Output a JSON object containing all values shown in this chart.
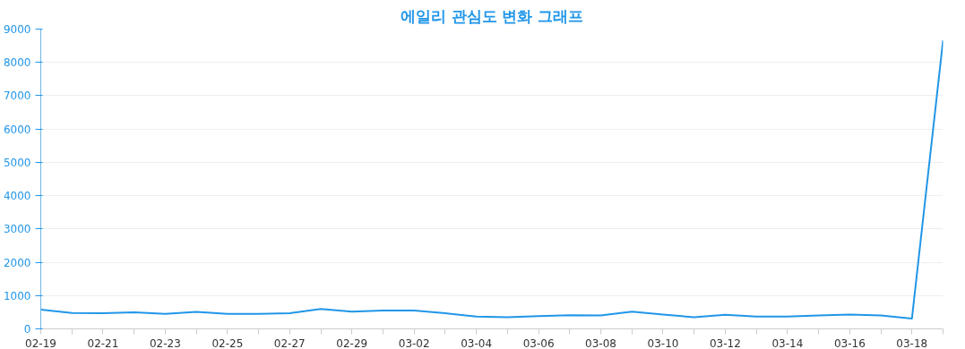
{
  "chart_data": {
    "type": "line",
    "title": "에일리 관심도 변화 그래프",
    "categories": [
      "02-19",
      null,
      "02-21",
      null,
      "02-23",
      null,
      "02-25",
      null,
      "02-27",
      null,
      "02-29",
      null,
      "03-02",
      null,
      "03-04",
      null,
      "03-06",
      null,
      "03-08",
      null,
      "03-10",
      null,
      "03-12",
      null,
      "03-14",
      null,
      "03-16",
      null,
      "03-18",
      null
    ],
    "series": [
      {
        "color": "#2196e8",
        "values": [
          580,
          480,
          470,
          500,
          450,
          510,
          450,
          450,
          470,
          600,
          520,
          550,
          550,
          470,
          370,
          350,
          380,
          410,
          400,
          520,
          430,
          350,
          420,
          370,
          370,
          400,
          430,
          400,
          310,
          8660
        ]
      }
    ],
    "ylim": [
      0,
      9000
    ],
    "yticks": [
      0,
      1000,
      2000,
      3000,
      4000,
      5000,
      6000,
      7000,
      8000,
      9000
    ],
    "grid": "y",
    "marker": "none",
    "line_style": "solid"
  }
}
